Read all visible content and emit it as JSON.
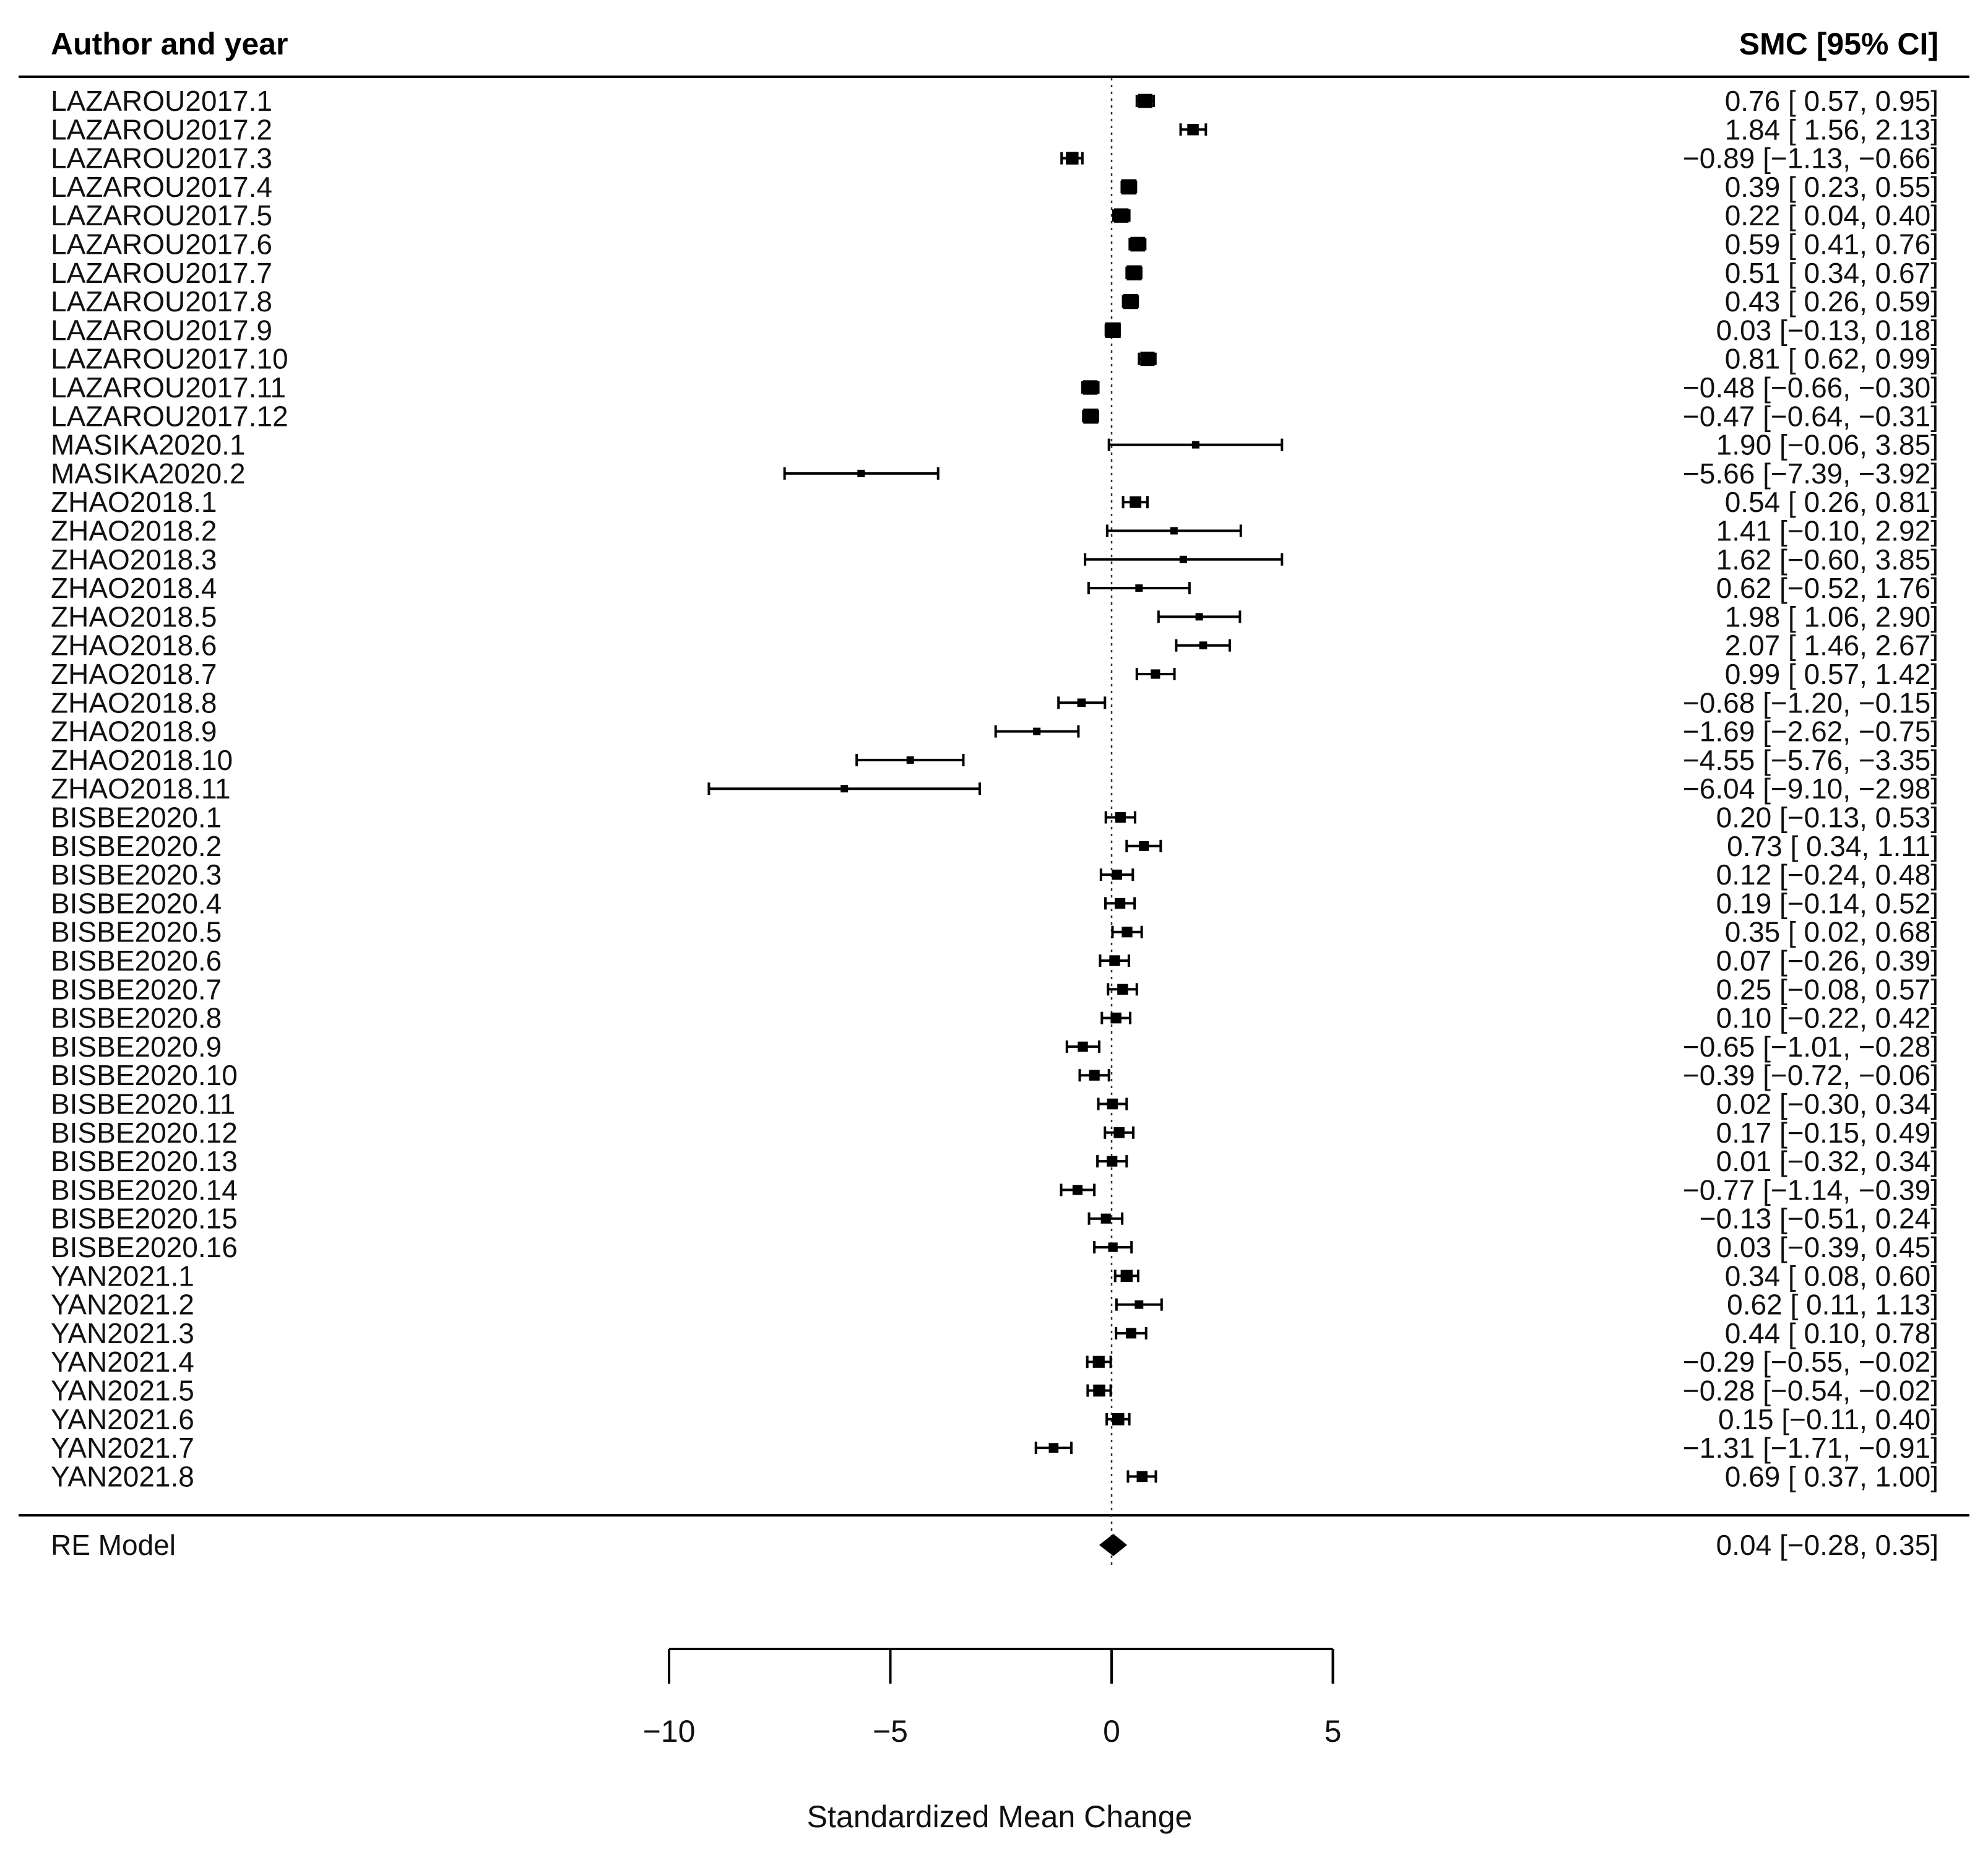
{
  "chart_data": {
    "type": "forest",
    "header_left": "Author and year",
    "header_right": "SMC [95% CI]",
    "xlabel": "Standardized Mean Change",
    "xlim": [
      -10,
      5
    ],
    "xticks": [
      -10,
      -5,
      0,
      5
    ],
    "xtick_labels": [
      "−10",
      "−5",
      "0",
      "5"
    ],
    "reference_line": 0,
    "studies": [
      {
        "label": "LAZAROU2017.1",
        "est": 0.76,
        "lo": 0.57,
        "hi": 0.95,
        "text": "0.76 [ 0.57,  0.95]"
      },
      {
        "label": "LAZAROU2017.2",
        "est": 1.84,
        "lo": 1.56,
        "hi": 2.13,
        "text": "1.84 [ 1.56,  2.13]"
      },
      {
        "label": "LAZAROU2017.3",
        "est": -0.89,
        "lo": -1.13,
        "hi": -0.66,
        "text": "−0.89 [−1.13, −0.66]"
      },
      {
        "label": "LAZAROU2017.4",
        "est": 0.39,
        "lo": 0.23,
        "hi": 0.55,
        "text": "0.39 [ 0.23,  0.55]"
      },
      {
        "label": "LAZAROU2017.5",
        "est": 0.22,
        "lo": 0.04,
        "hi": 0.4,
        "text": "0.22 [ 0.04,  0.40]"
      },
      {
        "label": "LAZAROU2017.6",
        "est": 0.59,
        "lo": 0.41,
        "hi": 0.76,
        "text": "0.59 [ 0.41,  0.76]"
      },
      {
        "label": "LAZAROU2017.7",
        "est": 0.51,
        "lo": 0.34,
        "hi": 0.67,
        "text": "0.51 [ 0.34,  0.67]"
      },
      {
        "label": "LAZAROU2017.8",
        "est": 0.43,
        "lo": 0.26,
        "hi": 0.59,
        "text": "0.43 [ 0.26,  0.59]"
      },
      {
        "label": "LAZAROU2017.9",
        "est": 0.03,
        "lo": -0.13,
        "hi": 0.18,
        "text": "0.03 [−0.13,  0.18]"
      },
      {
        "label": "LAZAROU2017.10",
        "est": 0.81,
        "lo": 0.62,
        "hi": 0.99,
        "text": "0.81 [ 0.62,  0.99]"
      },
      {
        "label": "LAZAROU2017.11",
        "est": -0.48,
        "lo": -0.66,
        "hi": -0.3,
        "text": "−0.48 [−0.66, −0.30]"
      },
      {
        "label": "LAZAROU2017.12",
        "est": -0.47,
        "lo": -0.64,
        "hi": -0.31,
        "text": "−0.47 [−0.64, −0.31]"
      },
      {
        "label": "MASIKA2020.1",
        "est": 1.9,
        "lo": -0.06,
        "hi": 3.85,
        "text": "1.90 [−0.06,  3.85]"
      },
      {
        "label": "MASIKA2020.2",
        "est": -5.66,
        "lo": -7.39,
        "hi": -3.92,
        "text": "−5.66 [−7.39, −3.92]"
      },
      {
        "label": "ZHAO2018.1",
        "est": 0.54,
        "lo": 0.26,
        "hi": 0.81,
        "text": "0.54 [ 0.26,  0.81]"
      },
      {
        "label": "ZHAO2018.2",
        "est": 1.41,
        "lo": -0.1,
        "hi": 2.92,
        "text": "1.41 [−0.10,  2.92]"
      },
      {
        "label": "ZHAO2018.3",
        "est": 1.62,
        "lo": -0.6,
        "hi": 3.85,
        "text": "1.62 [−0.60,  3.85]"
      },
      {
        "label": "ZHAO2018.4",
        "est": 0.62,
        "lo": -0.52,
        "hi": 1.76,
        "text": "0.62 [−0.52,  1.76]"
      },
      {
        "label": "ZHAO2018.5",
        "est": 1.98,
        "lo": 1.06,
        "hi": 2.9,
        "text": "1.98 [ 1.06,  2.90]"
      },
      {
        "label": "ZHAO2018.6",
        "est": 2.07,
        "lo": 1.46,
        "hi": 2.67,
        "text": "2.07 [ 1.46,  2.67]"
      },
      {
        "label": "ZHAO2018.7",
        "est": 0.99,
        "lo": 0.57,
        "hi": 1.42,
        "text": "0.99 [ 0.57,  1.42]"
      },
      {
        "label": "ZHAO2018.8",
        "est": -0.68,
        "lo": -1.2,
        "hi": -0.15,
        "text": "−0.68 [−1.20, −0.15]"
      },
      {
        "label": "ZHAO2018.9",
        "est": -1.69,
        "lo": -2.62,
        "hi": -0.75,
        "text": "−1.69 [−2.62, −0.75]"
      },
      {
        "label": "ZHAO2018.10",
        "est": -4.55,
        "lo": -5.76,
        "hi": -3.35,
        "text": "−4.55 [−5.76, −3.35]"
      },
      {
        "label": "ZHAO2018.11",
        "est": -6.04,
        "lo": -9.1,
        "hi": -2.98,
        "text": "−6.04 [−9.10, −2.98]"
      },
      {
        "label": "BISBE2020.1",
        "est": 0.2,
        "lo": -0.13,
        "hi": 0.53,
        "text": "0.20 [−0.13,  0.53]"
      },
      {
        "label": "BISBE2020.2",
        "est": 0.73,
        "lo": 0.34,
        "hi": 1.11,
        "text": "0.73 [ 0.34,  1.11]"
      },
      {
        "label": "BISBE2020.3",
        "est": 0.12,
        "lo": -0.24,
        "hi": 0.48,
        "text": "0.12 [−0.24,  0.48]"
      },
      {
        "label": "BISBE2020.4",
        "est": 0.19,
        "lo": -0.14,
        "hi": 0.52,
        "text": "0.19 [−0.14,  0.52]"
      },
      {
        "label": "BISBE2020.5",
        "est": 0.35,
        "lo": 0.02,
        "hi": 0.68,
        "text": "0.35 [ 0.02,  0.68]"
      },
      {
        "label": "BISBE2020.6",
        "est": 0.07,
        "lo": -0.26,
        "hi": 0.39,
        "text": "0.07 [−0.26,  0.39]"
      },
      {
        "label": "BISBE2020.7",
        "est": 0.25,
        "lo": -0.08,
        "hi": 0.57,
        "text": "0.25 [−0.08,  0.57]"
      },
      {
        "label": "BISBE2020.8",
        "est": 0.1,
        "lo": -0.22,
        "hi": 0.42,
        "text": "0.10 [−0.22,  0.42]"
      },
      {
        "label": "BISBE2020.9",
        "est": -0.65,
        "lo": -1.01,
        "hi": -0.28,
        "text": "−0.65 [−1.01, −0.28]"
      },
      {
        "label": "BISBE2020.10",
        "est": -0.39,
        "lo": -0.72,
        "hi": -0.06,
        "text": "−0.39 [−0.72, −0.06]"
      },
      {
        "label": "BISBE2020.11",
        "est": 0.02,
        "lo": -0.3,
        "hi": 0.34,
        "text": "0.02 [−0.30,  0.34]"
      },
      {
        "label": "BISBE2020.12",
        "est": 0.17,
        "lo": -0.15,
        "hi": 0.49,
        "text": "0.17 [−0.15,  0.49]"
      },
      {
        "label": "BISBE2020.13",
        "est": 0.01,
        "lo": -0.32,
        "hi": 0.34,
        "text": "0.01 [−0.32,  0.34]"
      },
      {
        "label": "BISBE2020.14",
        "est": -0.77,
        "lo": -1.14,
        "hi": -0.39,
        "text": "−0.77 [−1.14, −0.39]"
      },
      {
        "label": "BISBE2020.15",
        "est": -0.13,
        "lo": -0.51,
        "hi": 0.24,
        "text": "−0.13 [−0.51,  0.24]"
      },
      {
        "label": "BISBE2020.16",
        "est": 0.03,
        "lo": -0.39,
        "hi": 0.45,
        "text": "0.03 [−0.39,  0.45]"
      },
      {
        "label": "YAN2021.1",
        "est": 0.34,
        "lo": 0.08,
        "hi": 0.6,
        "text": "0.34 [ 0.08,  0.60]"
      },
      {
        "label": "YAN2021.2",
        "est": 0.62,
        "lo": 0.11,
        "hi": 1.13,
        "text": "0.62 [ 0.11,  1.13]"
      },
      {
        "label": "YAN2021.3",
        "est": 0.44,
        "lo": 0.1,
        "hi": 0.78,
        "text": "0.44 [ 0.10,  0.78]"
      },
      {
        "label": "YAN2021.4",
        "est": -0.29,
        "lo": -0.55,
        "hi": -0.02,
        "text": "−0.29 [−0.55, −0.02]"
      },
      {
        "label": "YAN2021.5",
        "est": -0.28,
        "lo": -0.54,
        "hi": -0.02,
        "text": "−0.28 [−0.54, −0.02]"
      },
      {
        "label": "YAN2021.6",
        "est": 0.15,
        "lo": -0.11,
        "hi": 0.4,
        "text": "0.15 [−0.11,  0.40]"
      },
      {
        "label": "YAN2021.7",
        "est": -1.31,
        "lo": -1.71,
        "hi": -0.91,
        "text": "−1.31 [−1.71, −0.91]"
      },
      {
        "label": "YAN2021.8",
        "est": 0.69,
        "lo": 0.37,
        "hi": 1.0,
        "text": "0.69 [ 0.37,  1.00]"
      }
    ],
    "summary": {
      "label": "RE Model",
      "est": 0.04,
      "lo": -0.28,
      "hi": 0.35,
      "text": "0.04 [−0.28,  0.35]"
    }
  }
}
